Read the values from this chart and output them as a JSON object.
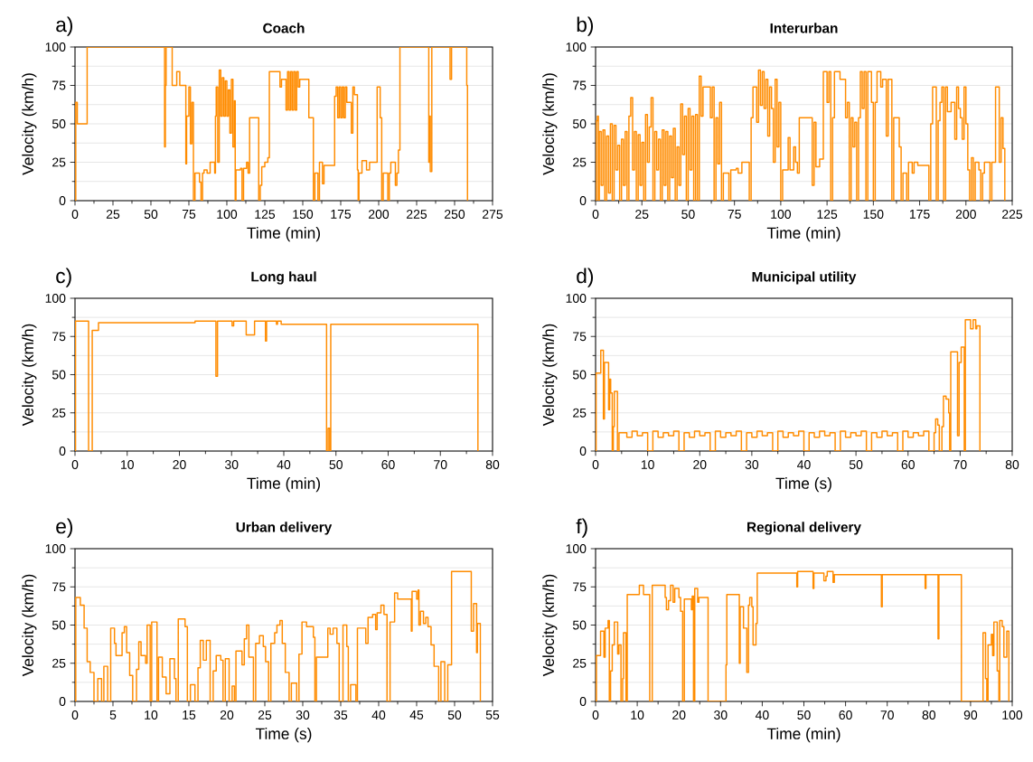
{
  "chart_data": [
    {
      "type": "step",
      "title": "Coach",
      "xlabel": "Time (min)",
      "ylabel": "Velocity (km/h)",
      "annotations": [
        "a)"
      ],
      "color": "#ff8c00",
      "grid": "y",
      "xlim": [
        0,
        275
      ],
      "ylim": [
        0,
        100
      ],
      "xticks": [
        0,
        25,
        50,
        75,
        100,
        125,
        150,
        175,
        200,
        225,
        250,
        275
      ],
      "yticks": [
        0,
        25,
        50,
        75,
        100
      ],
      "x": [
        0,
        0.5,
        1.5,
        8,
        59,
        59.5,
        60,
        64,
        67,
        69,
        72,
        73,
        73.5,
        75,
        76,
        77,
        78,
        79,
        82,
        83,
        84,
        85,
        87,
        89,
        92,
        92.5,
        93,
        94,
        95,
        96,
        97,
        98,
        99,
        100,
        101,
        102,
        103,
        104,
        105,
        105.5,
        106,
        109,
        110,
        111,
        113,
        114,
        115,
        121,
        122,
        123,
        125,
        127,
        128,
        135,
        136,
        139,
        140,
        141,
        142,
        143,
        144,
        145,
        146,
        147,
        148,
        154,
        157,
        158,
        160,
        161,
        163,
        164,
        171,
        172,
        173,
        174,
        175,
        176,
        177,
        178,
        179,
        182,
        183,
        184,
        186,
        186.5,
        187,
        189,
        192,
        194,
        199,
        201,
        202,
        203,
        206,
        207,
        208,
        211,
        212,
        213,
        214,
        233,
        233.5,
        234,
        235,
        247,
        248,
        258,
        258.5
      ],
      "values": [
        0,
        64,
        50,
        100,
        35,
        75,
        100,
        75,
        84,
        75,
        75,
        24,
        55,
        74,
        37,
        64,
        0,
        18,
        12,
        0,
        18,
        20,
        18,
        25,
        18,
        55,
        74,
        25,
        85,
        55,
        80,
        55,
        78,
        55,
        72,
        44,
        79,
        35,
        65,
        0,
        20,
        21,
        0,
        21,
        25,
        18,
        54,
        0,
        10,
        22,
        25,
        28,
        84,
        74,
        79,
        59,
        84,
        59,
        84,
        59,
        84,
        59,
        84,
        74,
        79,
        54,
        0,
        18,
        0,
        25,
        11,
        23,
        68,
        74,
        54,
        74,
        54,
        74,
        54,
        74,
        64,
        44,
        74,
        69,
        20,
        0,
        18,
        26,
        20,
        25,
        74,
        54,
        0,
        18,
        0,
        18,
        25,
        10,
        18,
        33,
        100,
        25,
        55,
        19,
        100,
        79,
        100,
        75,
        0
      ]
    },
    {
      "type": "step",
      "title": "Interurban",
      "xlabel": "Time (min)",
      "ylabel": "Velocity (km/h)",
      "annotations": [
        "b)"
      ],
      "color": "#ff8c00",
      "grid": "y",
      "xlim": [
        0,
        225
      ],
      "ylim": [
        0,
        100
      ],
      "xticks": [
        0,
        25,
        50,
        75,
        100,
        125,
        150,
        175,
        200,
        225
      ],
      "yticks": [
        0,
        25,
        50,
        75,
        100
      ],
      "x": [
        0,
        0.5,
        1,
        1.5,
        2,
        3,
        4,
        5,
        6,
        7,
        8,
        9,
        10,
        11,
        12,
        13,
        14,
        15,
        16,
        17,
        18,
        19,
        20,
        21,
        22,
        23,
        24,
        25,
        26,
        27,
        28,
        29,
        30,
        31,
        32,
        33,
        34,
        35,
        36,
        37,
        38,
        39,
        40,
        41,
        42,
        43,
        44,
        45,
        46,
        47,
        48,
        49,
        50,
        51,
        52,
        53,
        54,
        55,
        56,
        57,
        58,
        62,
        63,
        64,
        65,
        66,
        67,
        68,
        69,
        72,
        73,
        76,
        77,
        79,
        83,
        84,
        85,
        87,
        88,
        89,
        90,
        91,
        92,
        93,
        94,
        95,
        96,
        97,
        98,
        99,
        100,
        101,
        104,
        105,
        107,
        108,
        109,
        110,
        117,
        118,
        119,
        121,
        123,
        125,
        126,
        127,
        128,
        129,
        132,
        135,
        136,
        137,
        138,
        139,
        140,
        141,
        142,
        143,
        144,
        145,
        146,
        147,
        149,
        150,
        151,
        152,
        154,
        155,
        157,
        158,
        160,
        161,
        164,
        165,
        166,
        168,
        169,
        171,
        172,
        174,
        180,
        181,
        182,
        184,
        185,
        186,
        187,
        188,
        189,
        190,
        192,
        194,
        195,
        196,
        197,
        198,
        199,
        200,
        201,
        202,
        203,
        204,
        205,
        207,
        208,
        209,
        210,
        213,
        214,
        216,
        218,
        219,
        220,
        221
      ],
      "values": [
        0,
        52,
        55,
        0,
        45,
        10,
        46,
        0,
        42,
        5,
        50,
        0,
        49,
        20,
        36,
        0,
        40,
        10,
        45,
        0,
        55,
        67,
        20,
        45,
        0,
        43,
        10,
        38,
        0,
        56,
        25,
        48,
        67,
        0,
        45,
        20,
        40,
        0,
        46,
        10,
        45,
        0,
        42,
        15,
        47,
        0,
        35,
        10,
        63,
        30,
        55,
        0,
        60,
        20,
        55,
        0,
        56,
        0,
        81,
        55,
        74,
        54,
        74,
        0,
        54,
        24,
        64,
        0,
        18,
        0,
        20,
        21,
        18,
        25,
        0,
        54,
        74,
        51,
        85,
        62,
        84,
        60,
        79,
        42,
        74,
        60,
        25,
        79,
        35,
        64,
        0,
        20,
        41,
        20,
        35,
        25,
        18,
        54,
        10,
        51,
        22,
        27,
        84,
        64,
        84,
        0,
        54,
        84,
        79,
        54,
        64,
        0,
        54,
        35,
        51,
        0,
        54,
        84,
        60,
        84,
        0,
        84,
        64,
        0,
        64,
        84,
        74,
        79,
        42,
        79,
        0,
        54,
        35,
        0,
        18,
        0,
        25,
        18,
        25,
        23,
        0,
        50,
        74,
        0,
        52,
        64,
        74,
        0,
        74,
        58,
        64,
        40,
        74,
        60,
        54,
        40,
        74,
        50,
        20,
        0,
        28,
        0,
        25,
        20,
        0,
        18,
        25,
        0,
        25,
        74,
        25,
        54,
        34,
        0
      ]
    },
    {
      "type": "step",
      "title": "Long haul",
      "xlabel": "Time (min)",
      "ylabel": "Velocity (km/h)",
      "annotations": [
        "c)"
      ],
      "color": "#ff8c00",
      "grid": "y",
      "xlim": [
        0,
        80
      ],
      "ylim": [
        0,
        100
      ],
      "xticks": [
        0,
        10,
        20,
        30,
        40,
        50,
        60,
        70,
        80
      ],
      "yticks": [
        0,
        25,
        50,
        75,
        100
      ],
      "x": [
        0,
        0.1,
        2.6,
        3.3,
        4.5,
        23,
        27,
        27.3,
        30.1,
        30.4,
        32.8,
        34.4,
        36.5,
        36.7,
        38.6,
        38.8,
        39.5,
        48.2,
        48.5,
        48.8,
        49,
        77.2
      ],
      "values": [
        0,
        85,
        0,
        79,
        84,
        85,
        49,
        85,
        82,
        85,
        76,
        85,
        72,
        85,
        83,
        85,
        83,
        0,
        15,
        0,
        83,
        0
      ]
    },
    {
      "type": "step",
      "title": "Municipal utility",
      "xlabel": "Time (s)",
      "ylabel": "Velocity (km/h)",
      "annotations": [
        "d)"
      ],
      "color": "#ff8c00",
      "grid": "y",
      "xlim": [
        0,
        80
      ],
      "ylim": [
        0,
        100
      ],
      "xticks": [
        0,
        10,
        20,
        30,
        40,
        50,
        60,
        70,
        80
      ],
      "yticks": [
        0,
        25,
        50,
        75,
        100
      ],
      "x": [
        0,
        0.1,
        1,
        1.5,
        1.7,
        2.5,
        2.7,
        2.9,
        3.2,
        3.4,
        3.6,
        4.2,
        4.5,
        5,
        6,
        7,
        8,
        9,
        10,
        11,
        12,
        13,
        14,
        15,
        16,
        17,
        18,
        19,
        20,
        21,
        22,
        23,
        24,
        25,
        26,
        27,
        28,
        29,
        30,
        31,
        32,
        33,
        34,
        35,
        36,
        37,
        38,
        39,
        40,
        41,
        42,
        43,
        44,
        45,
        46,
        47,
        48,
        49,
        50,
        51,
        52,
        53,
        54,
        55,
        56,
        57,
        58,
        59,
        60,
        61,
        62,
        63,
        64,
        65,
        65.3,
        65.7,
        66,
        66.5,
        66.8,
        67.3,
        67.8,
        68,
        68.2,
        69.5,
        69.8,
        70.2,
        70.8,
        71,
        72,
        72.5,
        73,
        73.2,
        73.8
      ],
      "values": [
        0,
        51,
        66,
        21,
        58,
        27,
        47,
        38,
        0,
        16,
        39,
        0,
        12,
        12,
        9,
        13,
        10,
        12,
        0,
        13,
        9,
        12,
        10,
        13,
        0,
        12,
        9,
        13,
        10,
        12,
        0,
        13,
        9,
        12,
        10,
        13,
        0,
        12,
        9,
        13,
        10,
        12,
        0,
        13,
        9,
        12,
        10,
        13,
        0,
        12,
        9,
        13,
        10,
        12,
        0,
        13,
        9,
        12,
        10,
        13,
        0,
        12,
        9,
        13,
        10,
        12,
        0,
        13,
        9,
        12,
        10,
        13,
        0,
        12,
        21,
        17,
        0,
        16,
        36,
        34,
        25,
        0,
        65,
        10,
        58,
        68,
        0,
        86,
        80,
        86,
        80,
        82,
        0
      ]
    },
    {
      "type": "step",
      "title": "Urban delivery",
      "xlabel": "Time (s)",
      "ylabel": "Velocity (km/h)",
      "annotations": [
        "e)"
      ],
      "color": "#ff8c00",
      "grid": "y",
      "xlim": [
        0,
        55
      ],
      "ylim": [
        0,
        100
      ],
      "xticks": [
        0,
        5,
        10,
        15,
        20,
        25,
        30,
        35,
        40,
        45,
        50,
        55
      ],
      "yticks": [
        0,
        25,
        50,
        75,
        100
      ],
      "x": [
        0,
        0.1,
        0.7,
        1.2,
        1.6,
        2,
        2.5,
        3,
        3.5,
        3.8,
        4.3,
        4.7,
        5.2,
        5.4,
        6.2,
        6.5,
        6.8,
        7.2,
        7.6,
        8.1,
        8.4,
        8.7,
        9.3,
        9.5,
        9.9,
        10.1,
        10.8,
        11,
        11.5,
        12,
        12.5,
        13.1,
        13.3,
        13.6,
        14.5,
        14.8,
        15.2,
        15.8,
        16.2,
        16.5,
        16.9,
        17.3,
        17.8,
        18.2,
        18.6,
        19.2,
        19.5,
        19.8,
        20.3,
        20.7,
        21,
        21.2,
        22,
        22.3,
        22.6,
        22.9,
        23.5,
        23.8,
        24.3,
        24.8,
        25.1,
        25.5,
        25.8,
        26.3,
        26.6,
        27,
        27.3,
        27.7,
        28.2,
        28.5,
        29.2,
        29.5,
        29.9,
        30.5,
        31.4,
        31.6,
        31.8,
        33.3,
        33.6,
        34,
        34.5,
        34.8,
        35.3,
        35.8,
        36,
        36.3,
        37,
        37.2,
        38.3,
        38.6,
        39.2,
        39.6,
        39.8,
        40.3,
        40.7,
        41.1,
        41.5,
        42.1,
        42.5,
        44.3,
        44.4,
        45,
        45.2,
        45.3,
        45.5,
        45.9,
        46.2,
        46.5,
        46.9,
        47.3,
        47.9,
        48.2,
        48.7,
        49.1,
        49.6,
        52.2,
        52.5,
        52.9,
        53,
        53.4
      ],
      "values": [
        0,
        68,
        63,
        48,
        26,
        19,
        0,
        15,
        0,
        23,
        0,
        48,
        38,
        30,
        45,
        49,
        32,
        17,
        0,
        21,
        39,
        30,
        25,
        50,
        0,
        52,
        0,
        29,
        16,
        5,
        28,
        15,
        0,
        54,
        49,
        0,
        11,
        0,
        22,
        40,
        27,
        40,
        0,
        20,
        30,
        27,
        0,
        28,
        0,
        10,
        0,
        33,
        24,
        41,
        50,
        29,
        0,
        38,
        43,
        36,
        26,
        0,
        38,
        45,
        50,
        53,
        38,
        19,
        0,
        12,
        0,
        31,
        52,
        49,
        42,
        0,
        29,
        48,
        44,
        48,
        38,
        0,
        50,
        36,
        0,
        11,
        0,
        48,
        38,
        55,
        57,
        47,
        58,
        63,
        57,
        0,
        52,
        71,
        67,
        46,
        72,
        67,
        73,
        50,
        59,
        51,
        55,
        49,
        37,
        23,
        0,
        26,
        0,
        24,
        85,
        46,
        64,
        32,
        51,
        0
      ]
    },
    {
      "type": "step",
      "title": "Regional delivery",
      "xlabel": "Time (min)",
      "ylabel": "Velocity (km/h)",
      "annotations": [
        "f)"
      ],
      "color": "#ff8c00",
      "grid": "y",
      "xlim": [
        0,
        100
      ],
      "ylim": [
        0,
        100
      ],
      "xticks": [
        0,
        10,
        20,
        30,
        40,
        50,
        60,
        70,
        80,
        90,
        100
      ],
      "yticks": [
        0,
        25,
        50,
        75,
        100
      ],
      "x": [
        0,
        0.2,
        1.2,
        2,
        2.3,
        3,
        3.3,
        3.6,
        4,
        4.5,
        5.3,
        5.6,
        6.1,
        6.5,
        6.7,
        7.3,
        7.6,
        10.5,
        11.5,
        13,
        13.6,
        16.7,
        17,
        17.5,
        18,
        18.6,
        19,
        20,
        20.4,
        20.9,
        21.3,
        23,
        23.2,
        23.5,
        23.8,
        24.5,
        24.8,
        27,
        31.3,
        31.5,
        34.5,
        34.7,
        35.5,
        36.3,
        36.7,
        37,
        37.5,
        37.8,
        38.5,
        38.8,
        48.3,
        48.5,
        52.2,
        52.4,
        54.8,
        55.3,
        55.6,
        57,
        57.3,
        68.6,
        68.8,
        79.1,
        79.3,
        82.2,
        82.4,
        87.8,
        93,
        93.6,
        93.9,
        94.2,
        95,
        95.3,
        95.6,
        96.4,
        96.8,
        97,
        97.6,
        98,
        98.7,
        99.2
      ],
      "values": [
        0,
        30,
        46,
        29,
        48,
        53,
        0,
        20,
        37,
        52,
        31,
        37,
        0,
        15,
        45,
        0,
        70,
        76,
        70,
        0,
        76,
        68,
        60,
        66,
        76,
        65,
        74,
        68,
        59,
        0,
        67,
        60,
        69,
        0,
        74,
        65,
        68,
        0,
        24,
        70,
        25,
        62,
        48,
        19,
        63,
        68,
        62,
        37,
        51,
        84,
        75,
        85,
        74,
        84,
        79,
        82,
        85,
        78,
        83,
        62,
        83,
        74,
        83,
        41,
        83,
        0,
        45,
        15,
        0,
        37,
        44,
        30,
        52,
        20,
        0,
        53,
        49,
        29,
        46,
        0
      ]
    }
  ]
}
